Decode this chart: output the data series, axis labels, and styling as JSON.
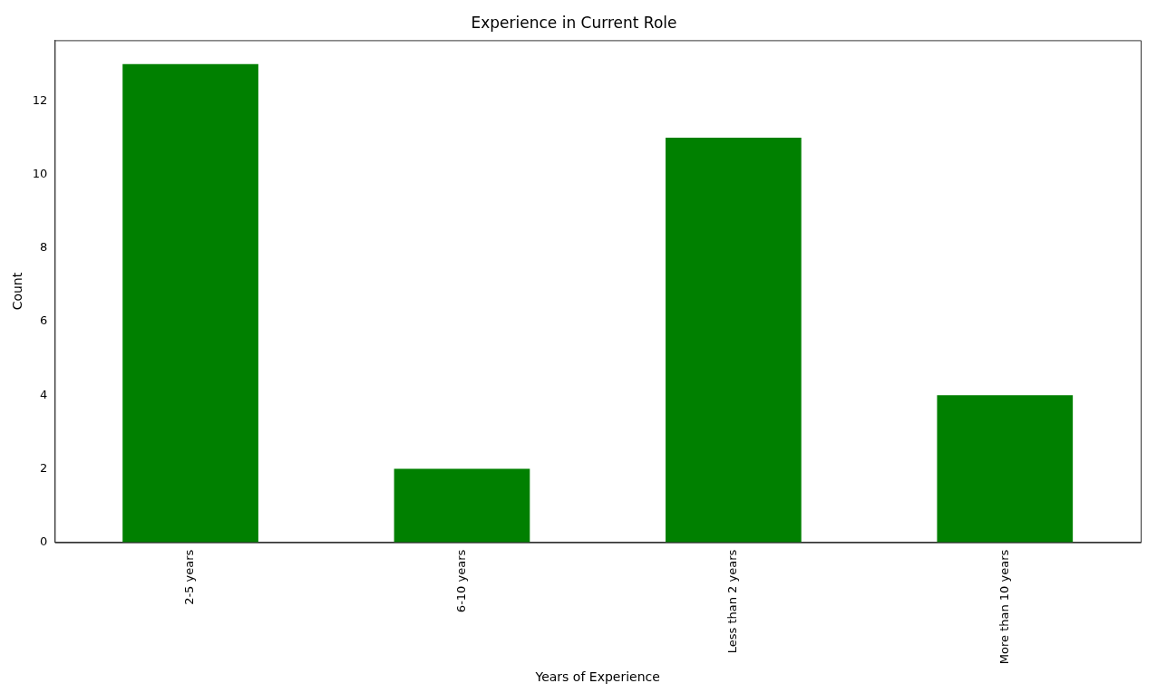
{
  "chart_data": {
    "type": "bar",
    "title": "Experience in Current Role",
    "xlabel": "Years of Experience",
    "ylabel": "Count",
    "categories": [
      "2-5 years",
      "6-10 years",
      "Less than 2 years",
      "More than 10 years"
    ],
    "values": [
      13,
      2,
      11,
      4
    ],
    "color": "#008000",
    "ylim": [
      0,
      13.65
    ],
    "yticks": [
      0,
      2,
      4,
      6,
      8,
      10,
      12
    ],
    "grid": false,
    "legend": false
  }
}
